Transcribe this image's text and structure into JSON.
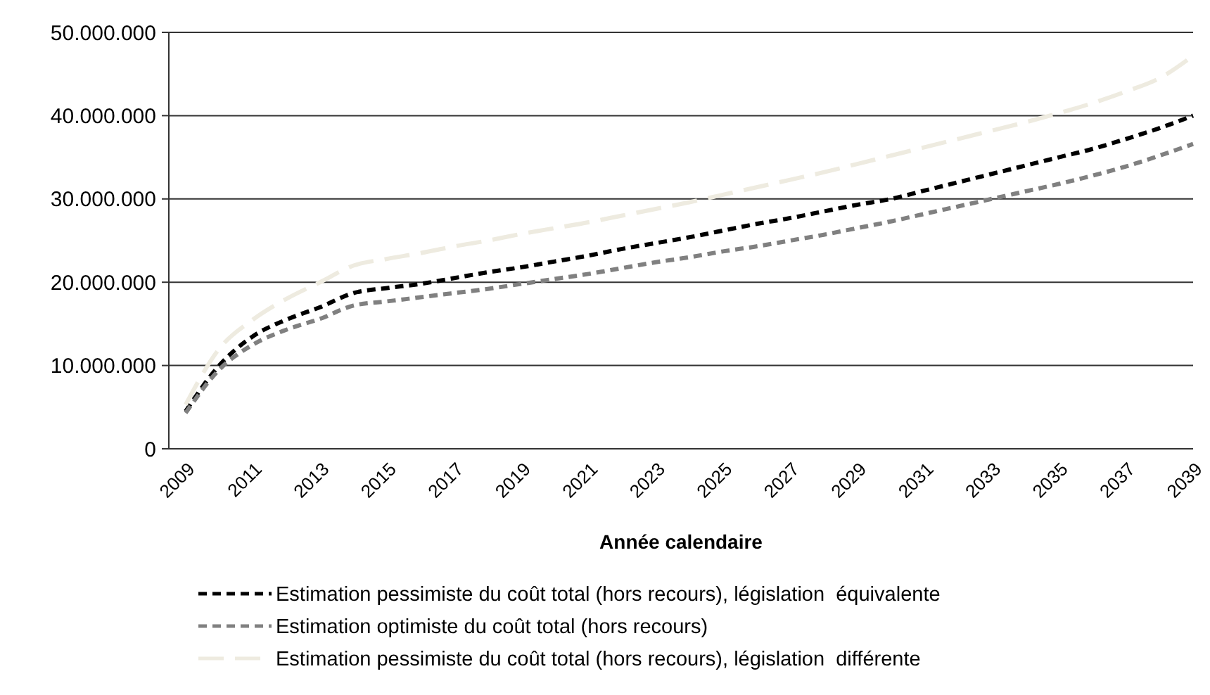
{
  "chart_data": {
    "type": "line",
    "xlabel": "Année calendaire",
    "x": [
      2009,
      2010,
      2011,
      2012,
      2013,
      2014,
      2015,
      2016,
      2017,
      2018,
      2019,
      2020,
      2021,
      2022,
      2023,
      2024,
      2025,
      2026,
      2027,
      2028,
      2029,
      2030,
      2031,
      2032,
      2033,
      2034,
      2035,
      2036,
      2037,
      2038,
      2039
    ],
    "series": [
      {
        "name": "Estimation pessimiste du coût total (hors recours), législation  équivalente",
        "color": "#000000",
        "line_style": "dashed",
        "values": [
          4500000,
          10000000,
          13500000,
          15500000,
          17000000,
          18700000,
          19300000,
          19800000,
          20500000,
          21200000,
          21800000,
          22500000,
          23200000,
          24000000,
          24700000,
          25400000,
          26200000,
          27000000,
          27700000,
          28500000,
          29300000,
          30000000,
          31000000,
          32000000,
          33000000,
          34000000,
          35000000,
          36000000,
          37200000,
          38500000,
          40000000
        ]
      },
      {
        "name": "Estimation optimiste du coût total (hors recours)",
        "color": "#808080",
        "line_style": "dashed",
        "values": [
          4300000,
          9500000,
          12500000,
          14300000,
          15600000,
          17200000,
          17700000,
          18200000,
          18700000,
          19200000,
          19800000,
          20400000,
          21000000,
          21700000,
          22400000,
          23000000,
          23700000,
          24300000,
          25000000,
          25700000,
          26500000,
          27300000,
          28200000,
          29100000,
          30000000,
          30900000,
          31800000,
          32800000,
          33900000,
          35200000,
          36600000
        ]
      },
      {
        "name": "Estimation pessimiste du coût total (hors recours), législation  différente",
        "color": "#eeebe0",
        "line_style": "dashed",
        "values": [
          5300000,
          12000000,
          15500000,
          18000000,
          20000000,
          22000000,
          22800000,
          23500000,
          24300000,
          25000000,
          25800000,
          26500000,
          27200000,
          28000000,
          28800000,
          29600000,
          30500000,
          31400000,
          32300000,
          33200000,
          34200000,
          35200000,
          36200000,
          37200000,
          38200000,
          39200000,
          40300000,
          41500000,
          42900000,
          44500000,
          47200000
        ]
      }
    ],
    "xlim": [
      2008.5,
      2039
    ],
    "xticks": [
      2009,
      2011,
      2013,
      2015,
      2017,
      2019,
      2021,
      2023,
      2025,
      2027,
      2029,
      2031,
      2033,
      2035,
      2037,
      2039
    ],
    "ylim": [
      0,
      50000000
    ],
    "yticks": [
      0,
      {
        "value": 10000000,
        "label": "10.000.000"
      },
      {
        "value": 20000000,
        "label": "20.000.000"
      },
      {
        "value": 30000000,
        "label": "30.000.000"
      },
      {
        "value": 40000000,
        "label": "40.000.000"
      },
      {
        "value": 50000000,
        "label": "50.000.000"
      }
    ],
    "grid": "y",
    "legend": "bottom",
    "marker": "none"
  }
}
